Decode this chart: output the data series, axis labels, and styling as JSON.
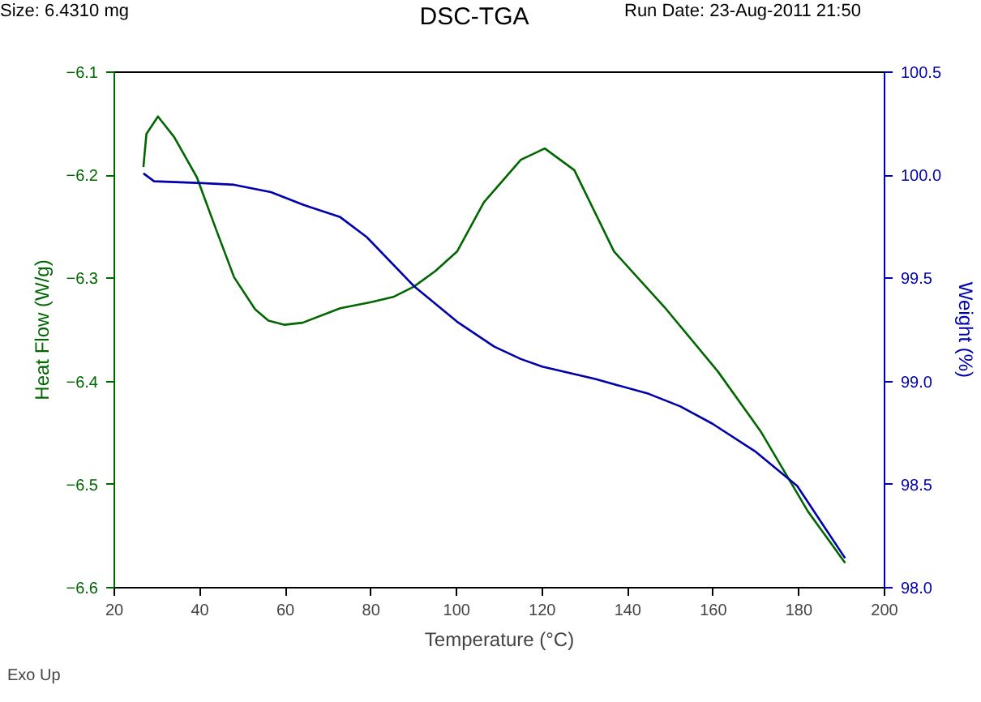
{
  "chart_data": {
    "type": "line",
    "title": "DSC-TGA",
    "xlabel": "Temperature (°C)",
    "ylabel": "Heat Flow (W/g)",
    "y2label": "Weight (%)",
    "annotations": [
      "Size:  6.4310 mg",
      "Run Date: 23-Aug-2011 21:50",
      "Exo Up"
    ],
    "xlim": [
      20,
      200
    ],
    "xticks": [
      20,
      40,
      60,
      80,
      100,
      120,
      140,
      160,
      180,
      200
    ],
    "ylim": [
      -6.6,
      -6.1
    ],
    "yticks": [
      -6.6,
      -6.5,
      -6.4,
      -6.3,
      -6.2,
      -6.1
    ],
    "y2lim": [
      98.0,
      100.5
    ],
    "y2ticks": [
      {
        "value": 98.0,
        "label": "98.0"
      },
      {
        "value": 98.5,
        "label": "98.5"
      },
      {
        "value": 99.0,
        "label": "99.0"
      },
      {
        "value": 99.5,
        "label": "99.5"
      },
      {
        "value": 100.0,
        "label": "100.0"
      },
      {
        "value": 100.5,
        "label": "100.5"
      }
    ],
    "grid": false,
    "line_style": "solid",
    "series": [
      {
        "color": "#006600",
        "x": [
          26.8,
          27.5,
          30.2,
          34,
          39.3,
          44,
          48,
          52.9,
          56,
          59.8,
          64,
          72.8,
          80,
          85.2,
          90,
          95,
          100.1,
          106.4,
          115,
          120.6,
          127.5,
          136.8,
          148.6,
          161,
          171,
          182.1,
          190.8
        ],
        "values": [
          -6.192,
          -6.16,
          -6.143,
          -6.163,
          -6.202,
          -6.255,
          -6.299,
          -6.33,
          -6.341,
          -6.345,
          -6.343,
          -6.329,
          -6.323,
          -6.318,
          -6.308,
          -6.293,
          -6.274,
          -6.226,
          -6.185,
          -6.174,
          -6.195,
          -6.274,
          -6.328,
          -6.39,
          -6.448,
          -6.526,
          -6.576
        ]
      },
      {
        "color": "#0000aa",
        "axis": "y2",
        "x": [
          26.8,
          29.3,
          40.5,
          48,
          56.6,
          64.1,
          72.8,
          79,
          90.2,
          100.1,
          108.8,
          115,
          120,
          132.4,
          144.9,
          152.3,
          159.8,
          169.7,
          179.6,
          190.8
        ],
        "values": [
          100.009,
          99.971,
          99.962,
          99.954,
          99.918,
          99.857,
          99.797,
          99.7,
          99.459,
          99.29,
          99.169,
          99.109,
          99.072,
          99.012,
          98.94,
          98.879,
          98.795,
          98.662,
          98.493,
          98.143
        ]
      }
    ]
  }
}
